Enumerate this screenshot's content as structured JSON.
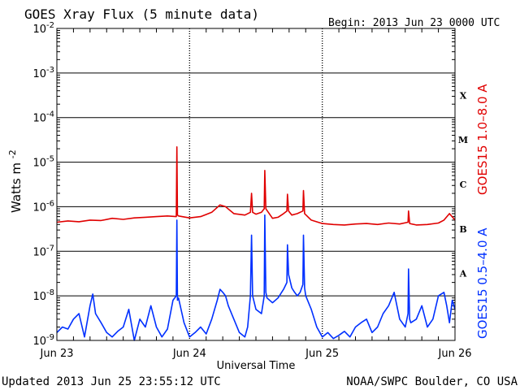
{
  "chart_data": {
    "type": "line",
    "title": "GOES Xray Flux (5 minute data)",
    "begin_label": "Begin:  2013 Jun 23 0000 UTC",
    "ylabel_text": "Watts m",
    "ylabel_exp": "-2",
    "xlabel": "Universal Time",
    "updated": "Updated 2013 Jun 25 23:55:12 UTC",
    "credit": "NOAA/SWPC Boulder, CO USA",
    "yscale": "log",
    "ylim": [
      1e-09,
      0.01
    ],
    "ytick_exps": [
      "-2",
      "-3",
      "-4",
      "-5",
      "-6",
      "-7",
      "-8",
      "-9"
    ],
    "ytick_base": "10",
    "x_unit": "hours since 2013 Jun 23 0000 UTC",
    "xlim": [
      0,
      72
    ],
    "xticks": [
      {
        "x": 0,
        "label": "Jun 23"
      },
      {
        "x": 24,
        "label": "Jun 24"
      },
      {
        "x": 48,
        "label": "Jun 25"
      },
      {
        "x": 72,
        "label": "Jun 26"
      }
    ],
    "flare_classes": [
      {
        "label": "X",
        "exp": -3.5
      },
      {
        "label": "M",
        "exp": -4.5
      },
      {
        "label": "C",
        "exp": -5.5
      },
      {
        "label": "B",
        "exp": -6.5
      },
      {
        "label": "A",
        "exp": -7.5
      }
    ],
    "grid": true,
    "series": [
      {
        "name": "GOES15 1.0–8.0 A",
        "color": "#e00000",
        "x": [
          0,
          2,
          4,
          6,
          8,
          10,
          12,
          14,
          16,
          18,
          20,
          21.6,
          21.7,
          21.8,
          22,
          24,
          26,
          28,
          29.5,
          30.5,
          32,
          34,
          35,
          35.2,
          35.4,
          36,
          37,
          37.5,
          37.6,
          37.8,
          39,
          40,
          41,
          41.6,
          41.7,
          41.9,
          42.5,
          43.5,
          44.5,
          44.6,
          44.8,
          46,
          48,
          50,
          52,
          54,
          56,
          58,
          60,
          62,
          63.5,
          63.6,
          63.8,
          65,
          67,
          69,
          70,
          71,
          72
        ],
        "y": [
          4.5e-07,
          4.8e-07,
          4.6e-07,
          5e-07,
          4.9e-07,
          5.5e-07,
          5.2e-07,
          5.6e-07,
          5.8e-07,
          6e-07,
          6.2e-07,
          6e-07,
          2.2e-05,
          6.5e-07,
          6.2e-07,
          5.6e-07,
          6e-07,
          7.5e-07,
          1.1e-06,
          1e-06,
          7e-07,
          6.5e-07,
          7.5e-07,
          2e-06,
          7.5e-07,
          6.8e-07,
          7.5e-07,
          9e-07,
          6.5e-06,
          9e-07,
          5.5e-07,
          5.8e-07,
          7e-07,
          8e-07,
          1.9e-06,
          8e-07,
          6.5e-07,
          7e-07,
          8e-07,
          2.3e-06,
          7e-07,
          5e-07,
          4.2e-07,
          4e-07,
          3.9e-07,
          4.1e-07,
          4.2e-07,
          4e-07,
          4.3e-07,
          4.1e-07,
          4.5e-07,
          8e-07,
          4.2e-07,
          3.9e-07,
          4e-07,
          4.3e-07,
          5e-07,
          7e-07,
          5e-07
        ]
      },
      {
        "name": "GOES15 0.5–4.0 A",
        "color": "#0030ff",
        "x": [
          0,
          1,
          2,
          3,
          4,
          5,
          6,
          6.5,
          7,
          8,
          9,
          10,
          11,
          12,
          13,
          14,
          15,
          16,
          17,
          18,
          19,
          20,
          21,
          21.6,
          21.7,
          21.8,
          22,
          23,
          24,
          25,
          26,
          27,
          28,
          29,
          29.5,
          30,
          30.5,
          31,
          32,
          33,
          34,
          34.5,
          35,
          35.2,
          35.4,
          36,
          37,
          37.5,
          37.6,
          37.8,
          38,
          39,
          40,
          41,
          41.6,
          41.7,
          41.9,
          42.5,
          43,
          43.5,
          44,
          44.5,
          44.6,
          44.8,
          45,
          46,
          47,
          48,
          49,
          50,
          51,
          52,
          53,
          54,
          55,
          56,
          57,
          58,
          59,
          60,
          61,
          62,
          63,
          63.5,
          63.6,
          63.8,
          64,
          65,
          66,
          67,
          68,
          69,
          70,
          70.5,
          71,
          71.5,
          72
        ],
        "y": [
          1.5e-09,
          2e-09,
          1.8e-09,
          3e-09,
          4e-09,
          1.2e-09,
          6e-09,
          1.1e-08,
          4e-09,
          2.5e-09,
          1.5e-09,
          1.2e-09,
          1.6e-09,
          2e-09,
          5e-09,
          1e-09,
          3e-09,
          2e-09,
          6e-09,
          2e-09,
          1.2e-09,
          1.8e-09,
          8e-09,
          1e-08,
          5e-07,
          8e-09,
          9e-09,
          2.5e-09,
          1.2e-09,
          1.5e-09,
          2e-09,
          1.4e-09,
          3e-09,
          8e-09,
          1.4e-08,
          1.2e-08,
          1e-08,
          6e-09,
          3e-09,
          1.5e-09,
          1.2e-09,
          2e-09,
          1e-08,
          2.3e-07,
          1e-08,
          5e-09,
          4e-09,
          1e-08,
          6.5e-07,
          1.2e-08,
          9e-09,
          7e-09,
          9e-09,
          1.4e-08,
          2e-08,
          1.4e-07,
          3e-08,
          1.5e-08,
          1.2e-08,
          1e-08,
          1.2e-08,
          1.8e-08,
          2.3e-07,
          1.5e-08,
          1e-08,
          5e-09,
          2e-09,
          1.2e-09,
          1.5e-09,
          1.1e-09,
          1.3e-09,
          1.6e-09,
          1.2e-09,
          2e-09,
          2.5e-09,
          3e-09,
          1.5e-09,
          2e-09,
          4e-09,
          6e-09,
          1.2e-08,
          3e-09,
          2e-09,
          4e-09,
          4e-08,
          3e-09,
          2.5e-09,
          3e-09,
          6e-09,
          2e-09,
          3e-09,
          1e-08,
          1.2e-08,
          6e-09,
          2.5e-09,
          8e-09,
          5e-09
        ]
      }
    ]
  }
}
